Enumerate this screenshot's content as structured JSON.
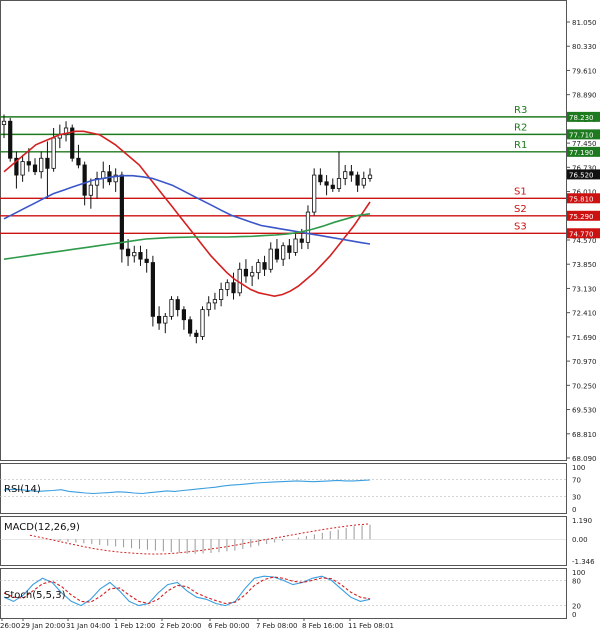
{
  "chart_data": [
    {
      "type": "candlestick",
      "panel": "price",
      "y_ticks": [
        "81.050",
        "80.330",
        "79.610",
        "78.890",
        "78.170",
        "77.450",
        "76.730",
        "76.010",
        "75.290",
        "74.570",
        "73.850",
        "73.130",
        "72.410",
        "71.690",
        "70.970",
        "70.250",
        "69.530",
        "68.810",
        "68.090"
      ],
      "y_ticks_num": [
        81.05,
        80.33,
        79.61,
        78.89,
        78.17,
        77.45,
        76.73,
        76.01,
        75.29,
        74.57,
        73.85,
        73.13,
        72.41,
        71.69,
        70.97,
        70.25,
        69.53,
        68.81,
        68.09
      ],
      "ylim": [
        68.09,
        81.05
      ],
      "x_labels": [
        "26:00",
        "29 Jan 20:00",
        "31 Jan 04:00",
        "1 Feb 12:00",
        "2 Feb 20:00",
        "6 Feb 00:00",
        "7 Feb 08:00",
        "8 Feb 16:00",
        "11 Feb 08:01"
      ],
      "current_price": "76.520",
      "levels": [
        {
          "name": "R3",
          "value": 78.23,
          "label": "78.230",
          "color": "#1e7a1e"
        },
        {
          "name": "R2",
          "value": 77.71,
          "label": "77.710",
          "color": "#1e7a1e"
        },
        {
          "name": "R1",
          "value": 77.19,
          "label": "77.190",
          "color": "#1e7a1e"
        },
        {
          "name": "S1",
          "value": 75.81,
          "label": "75.810",
          "color": "#cc1111"
        },
        {
          "name": "S2",
          "value": 75.29,
          "label": "75.290",
          "color": "#cc1111"
        },
        {
          "name": "S3",
          "value": 74.77,
          "label": "74.770",
          "color": "#cc1111"
        }
      ],
      "candles": [
        {
          "o": 78.0,
          "h": 78.3,
          "l": 77.6,
          "c": 78.1
        },
        {
          "o": 78.1,
          "h": 78.2,
          "l": 76.9,
          "c": 77.0
        },
        {
          "o": 77.0,
          "h": 77.2,
          "l": 76.1,
          "c": 76.5
        },
        {
          "o": 76.5,
          "h": 77.1,
          "l": 76.3,
          "c": 76.9
        },
        {
          "o": 76.9,
          "h": 77.3,
          "l": 76.6,
          "c": 76.8
        },
        {
          "o": 76.8,
          "h": 77.0,
          "l": 76.5,
          "c": 76.6
        },
        {
          "o": 76.6,
          "h": 77.2,
          "l": 76.4,
          "c": 77.0
        },
        {
          "o": 77.0,
          "h": 77.5,
          "l": 75.8,
          "c": 76.7
        },
        {
          "o": 76.7,
          "h": 77.9,
          "l": 76.6,
          "c": 77.6
        },
        {
          "o": 77.6,
          "h": 78.0,
          "l": 77.3,
          "c": 77.7
        },
        {
          "o": 77.7,
          "h": 78.1,
          "l": 77.5,
          "c": 77.9
        },
        {
          "o": 77.9,
          "h": 78.0,
          "l": 76.9,
          "c": 77.0
        },
        {
          "o": 77.0,
          "h": 77.4,
          "l": 76.7,
          "c": 76.8
        },
        {
          "o": 76.8,
          "h": 76.9,
          "l": 75.6,
          "c": 75.9
        },
        {
          "o": 75.9,
          "h": 76.4,
          "l": 75.5,
          "c": 76.2
        },
        {
          "o": 76.2,
          "h": 76.6,
          "l": 75.8,
          "c": 76.4
        },
        {
          "o": 76.4,
          "h": 76.9,
          "l": 76.1,
          "c": 76.6
        },
        {
          "o": 76.6,
          "h": 76.8,
          "l": 76.2,
          "c": 76.3
        },
        {
          "o": 76.3,
          "h": 76.7,
          "l": 76.0,
          "c": 76.5
        },
        {
          "o": 76.5,
          "h": 76.6,
          "l": 73.9,
          "c": 74.3
        },
        {
          "o": 74.3,
          "h": 74.6,
          "l": 73.8,
          "c": 74.1
        },
        {
          "o": 74.1,
          "h": 74.4,
          "l": 73.9,
          "c": 74.2
        },
        {
          "o": 74.2,
          "h": 74.4,
          "l": 73.8,
          "c": 74.0
        },
        {
          "o": 74.0,
          "h": 74.3,
          "l": 73.6,
          "c": 73.9
        },
        {
          "o": 73.9,
          "h": 74.1,
          "l": 72.0,
          "c": 72.3
        },
        {
          "o": 72.3,
          "h": 72.6,
          "l": 71.9,
          "c": 72.1
        },
        {
          "o": 72.1,
          "h": 72.4,
          "l": 71.8,
          "c": 72.3
        },
        {
          "o": 72.3,
          "h": 72.9,
          "l": 72.2,
          "c": 72.8
        },
        {
          "o": 72.8,
          "h": 72.9,
          "l": 72.3,
          "c": 72.5
        },
        {
          "o": 72.5,
          "h": 72.6,
          "l": 71.9,
          "c": 72.2
        },
        {
          "o": 72.2,
          "h": 72.3,
          "l": 71.7,
          "c": 71.8
        },
        {
          "o": 71.8,
          "h": 71.9,
          "l": 71.5,
          "c": 71.7
        },
        {
          "o": 71.7,
          "h": 72.6,
          "l": 71.6,
          "c": 72.5
        },
        {
          "o": 72.5,
          "h": 72.9,
          "l": 72.3,
          "c": 72.7
        },
        {
          "o": 72.7,
          "h": 73.0,
          "l": 72.5,
          "c": 72.8
        },
        {
          "o": 72.8,
          "h": 73.3,
          "l": 72.6,
          "c": 73.1
        },
        {
          "o": 73.1,
          "h": 73.4,
          "l": 72.9,
          "c": 73.3
        },
        {
          "o": 73.3,
          "h": 73.6,
          "l": 72.8,
          "c": 73.0
        },
        {
          "o": 73.0,
          "h": 73.9,
          "l": 72.9,
          "c": 73.7
        },
        {
          "o": 73.7,
          "h": 74.0,
          "l": 73.3,
          "c": 73.5
        },
        {
          "o": 73.5,
          "h": 73.8,
          "l": 73.2,
          "c": 73.6
        },
        {
          "o": 73.6,
          "h": 74.0,
          "l": 73.4,
          "c": 73.9
        },
        {
          "o": 73.9,
          "h": 74.1,
          "l": 73.5,
          "c": 73.7
        },
        {
          "o": 73.7,
          "h": 74.5,
          "l": 73.6,
          "c": 74.3
        },
        {
          "o": 74.3,
          "h": 74.6,
          "l": 73.9,
          "c": 74.0
        },
        {
          "o": 74.0,
          "h": 74.5,
          "l": 73.8,
          "c": 74.4
        },
        {
          "o": 74.4,
          "h": 74.6,
          "l": 74.0,
          "c": 74.2
        },
        {
          "o": 74.2,
          "h": 74.8,
          "l": 74.1,
          "c": 74.6
        },
        {
          "o": 74.6,
          "h": 74.9,
          "l": 74.3,
          "c": 74.5
        },
        {
          "o": 74.5,
          "h": 75.6,
          "l": 74.3,
          "c": 75.4
        },
        {
          "o": 75.4,
          "h": 76.7,
          "l": 75.3,
          "c": 76.5
        },
        {
          "o": 76.5,
          "h": 76.7,
          "l": 76.2,
          "c": 76.3
        },
        {
          "o": 76.3,
          "h": 76.5,
          "l": 75.9,
          "c": 76.2
        },
        {
          "o": 76.2,
          "h": 76.4,
          "l": 76.0,
          "c": 76.1
        },
        {
          "o": 76.1,
          "h": 77.2,
          "l": 76.0,
          "c": 76.4
        },
        {
          "o": 76.4,
          "h": 76.8,
          "l": 76.2,
          "c": 76.6
        },
        {
          "o": 76.6,
          "h": 76.8,
          "l": 76.3,
          "c": 76.5
        },
        {
          "o": 76.5,
          "h": 76.6,
          "l": 76.0,
          "c": 76.2
        },
        {
          "o": 76.2,
          "h": 76.6,
          "l": 76.1,
          "c": 76.4
        },
        {
          "o": 76.4,
          "h": 76.7,
          "l": 76.3,
          "c": 76.5
        }
      ],
      "moving_averages": [
        {
          "color": "#d42020",
          "values": [
            76.6,
            76.8,
            77.0,
            77.2,
            77.4,
            77.5,
            77.6,
            77.7,
            77.75,
            77.8,
            77.8,
            77.75,
            77.7,
            77.55,
            77.4,
            77.2,
            77.0,
            76.8,
            76.5,
            76.2,
            75.9,
            75.6,
            75.3,
            75.0,
            74.7,
            74.4,
            74.1,
            73.85,
            73.6,
            73.4,
            73.25,
            73.1,
            73.0,
            72.95,
            72.9,
            72.95,
            73.05,
            73.2,
            73.4,
            73.6,
            73.85,
            74.1,
            74.4,
            74.7,
            75.0,
            75.35,
            75.7
          ]
        },
        {
          "color": "#3a56c8",
          "values": [
            75.2,
            75.35,
            75.5,
            75.65,
            75.8,
            75.95,
            76.05,
            76.15,
            76.25,
            76.35,
            76.4,
            76.45,
            76.48,
            76.48,
            76.45,
            76.4,
            76.3,
            76.2,
            76.05,
            75.9,
            75.75,
            75.6,
            75.45,
            75.3,
            75.2,
            75.1,
            75.0,
            74.95,
            74.9,
            74.85,
            74.8,
            74.75,
            74.7,
            74.65,
            74.6,
            74.55,
            74.5,
            74.45
          ]
        },
        {
          "color": "#2e9a4a",
          "values": [
            74.0,
            74.05,
            74.1,
            74.15,
            74.2,
            74.25,
            74.3,
            74.35,
            74.4,
            74.45,
            74.5,
            74.55,
            74.6,
            74.62,
            74.64,
            74.65,
            74.66,
            74.66,
            74.66,
            74.66,
            74.67,
            74.68,
            74.7,
            74.72,
            74.75,
            74.8,
            74.88,
            74.98,
            75.1,
            75.2,
            75.3,
            75.35
          ]
        }
      ]
    },
    {
      "type": "line",
      "panel": "rsi",
      "label": "RSI(14)",
      "y_ticks": [
        "100",
        "70",
        "30",
        "0"
      ],
      "ylim": [
        0,
        100
      ],
      "series": [
        {
          "color": "#3a9ee0",
          "values": [
            45,
            47,
            46,
            44,
            42,
            43,
            44,
            46,
            42,
            40,
            38,
            37,
            38,
            39,
            41,
            40,
            38,
            37,
            39,
            41,
            43,
            42,
            44,
            46,
            48,
            50,
            52,
            55,
            57,
            58,
            60,
            62,
            63,
            64,
            65,
            66,
            67,
            66,
            65,
            66,
            67,
            68,
            67,
            67,
            68,
            69
          ]
        }
      ]
    },
    {
      "type": "histogram",
      "panel": "macd",
      "label": "MACD(12,26,9)",
      "y_ticks": [
        "1.190",
        "0.00",
        "-1.346"
      ],
      "ylim": [
        -1.346,
        1.19
      ],
      "histogram": [
        -0.1,
        -0.15,
        -0.2,
        -0.25,
        -0.3,
        -0.35,
        -0.4,
        -0.45,
        -0.5,
        -0.55,
        -0.6,
        -0.65,
        -0.7,
        -0.75,
        -0.8,
        -0.85,
        -0.9,
        -0.9,
        -0.88,
        -0.85,
        -0.8,
        -0.75,
        -0.7,
        -0.6,
        -0.5,
        -0.4,
        -0.3,
        -0.2,
        -0.1,
        0.0,
        0.1,
        0.2,
        0.3,
        0.4,
        0.5,
        0.6,
        0.7,
        0.8,
        0.85,
        0.9
      ],
      "signal": [
        0.25,
        0.1,
        -0.05,
        -0.2,
        -0.35,
        -0.5,
        -0.62,
        -0.72,
        -0.8,
        -0.86,
        -0.9,
        -0.92,
        -0.9,
        -0.85,
        -0.78,
        -0.7,
        -0.6,
        -0.5,
        -0.38,
        -0.25,
        -0.12,
        0.0,
        0.12,
        0.25,
        0.38,
        0.5,
        0.62,
        0.72,
        0.82,
        0.9,
        0.95
      ]
    },
    {
      "type": "line",
      "panel": "stoch",
      "label": "Stoch(5,5,3)",
      "y_ticks": [
        "100",
        "80",
        "20",
        "0"
      ],
      "ylim": [
        0,
        100
      ],
      "series": [
        {
          "color": "#3a9ee0",
          "values": [
            40,
            30,
            45,
            70,
            85,
            75,
            50,
            30,
            20,
            35,
            60,
            75,
            55,
            30,
            20,
            25,
            50,
            70,
            75,
            55,
            40,
            35,
            25,
            20,
            30,
            60,
            85,
            90,
            88,
            80,
            70,
            75,
            85,
            90,
            80,
            60,
            40,
            30,
            35
          ]
        },
        {
          "color": "#d42020",
          "style": "dashed",
          "values": [
            50,
            40,
            38,
            55,
            72,
            78,
            65,
            45,
            30,
            28,
            42,
            60,
            62,
            45,
            30,
            25,
            35,
            55,
            68,
            65,
            50,
            40,
            32,
            25,
            28,
            45,
            68,
            82,
            88,
            85,
            78,
            75,
            80,
            86,
            84,
            70,
            52,
            40,
            36
          ]
        }
      ]
    }
  ]
}
